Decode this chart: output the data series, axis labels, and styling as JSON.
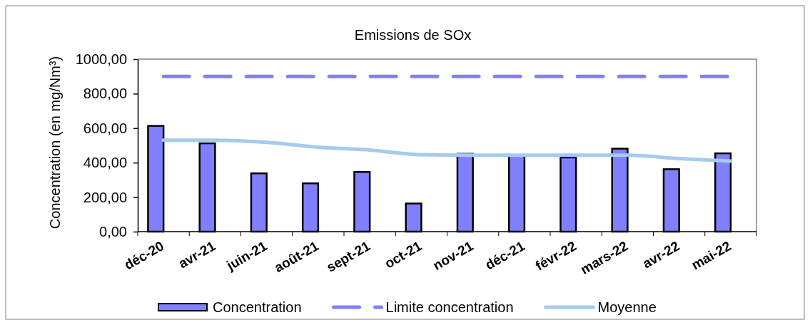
{
  "chart_data": {
    "type": "bar",
    "title": "Emissions de SOx",
    "ylabel": "Concentration (en mg/Nm³)",
    "categories": [
      "déc-20",
      "avr-21",
      "juin-21",
      "août-21",
      "sept-21",
      "oct-21",
      "nov-21",
      "déc-21",
      "févr-22",
      "mars-22",
      "avr-22",
      "mai-22"
    ],
    "series": [
      {
        "name": "Concentration",
        "color": "#8080ff",
        "values": [
          613,
          512,
          338,
          280,
          346,
          163,
          451,
          445,
          430,
          481,
          362,
          454
        ]
      },
      {
        "name": "Limite concentration",
        "type": "line",
        "color": "#8080ff",
        "line_style": "dashed",
        "values": [
          900,
          900,
          900,
          900,
          900,
          900,
          900,
          900,
          900,
          900,
          900,
          900
        ]
      },
      {
        "name": "Moyenne",
        "type": "line",
        "color": "#a6caf0",
        "values": [
          530,
          530,
          518,
          490,
          473,
          446,
          443,
          443,
          443,
          443,
          424,
          409
        ]
      }
    ],
    "ylim": [
      0,
      1000
    ],
    "yticks": [
      {
        "value": 0,
        "label": "0,00"
      },
      {
        "value": 200,
        "label": "200,00"
      },
      {
        "value": 400,
        "label": "400,00"
      },
      {
        "value": 600,
        "label": "600,00"
      },
      {
        "value": 800,
        "label": "800,00"
      },
      {
        "value": 1000,
        "label": "1000,00"
      }
    ],
    "legend": "bottom"
  }
}
